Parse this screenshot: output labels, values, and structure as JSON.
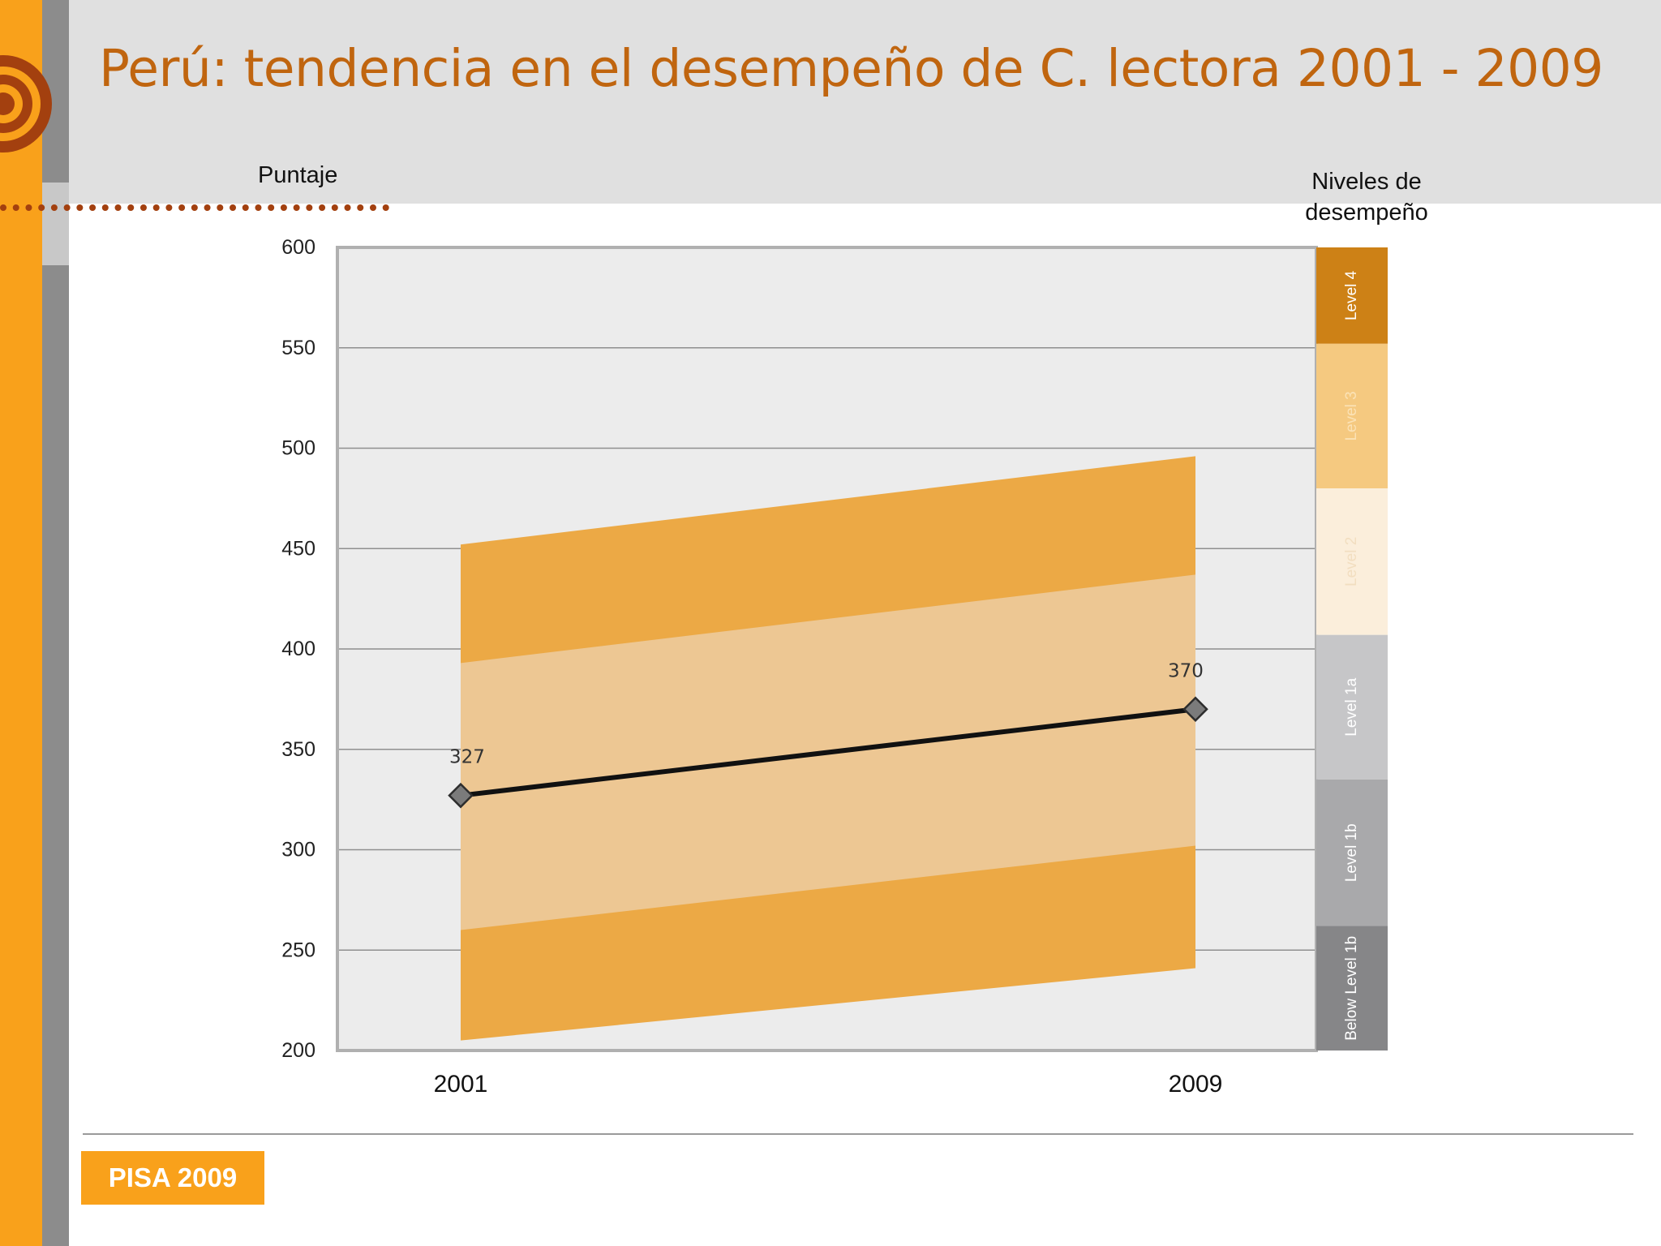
{
  "title": "Perú: tendencia en el desempeño de C. lectora 2001 - 2009",
  "footer_badge": "PISA 2009",
  "y_axis_label": "Puntaje",
  "levels_title": "Niveles de desempeño",
  "colors": {
    "accent_orange": "#f9a11b",
    "title_orange": "#c0650f",
    "band_outer": "#eca945",
    "band_inner": "#edc793",
    "line": "#111111",
    "marker": "#7b7b7b"
  },
  "chart_data": {
    "type": "line",
    "x": [
      "2001",
      "2009"
    ],
    "ylim": [
      200,
      600
    ],
    "yticks": [
      600,
      550,
      500,
      450,
      400,
      350,
      300,
      250,
      200
    ],
    "grid": true,
    "series": [
      {
        "values": [
          327,
          370
        ],
        "data_labels": [
          "327",
          "370"
        ]
      }
    ],
    "bands": [
      {
        "lower": [
          205,
          241
        ],
        "upper": [
          452,
          496
        ],
        "style": "outer"
      },
      {
        "lower": [
          260,
          302
        ],
        "upper": [
          393,
          437
        ],
        "style": "inner"
      }
    ],
    "levels": [
      {
        "label": "Level 4",
        "from": 552,
        "to": 600,
        "color": "#cd8116",
        "text": "#ffffff"
      },
      {
        "label": "Level 3",
        "from": 480,
        "to": 552,
        "color": "#f5c980",
        "text": "#fbe2b5"
      },
      {
        "label": "Level 2",
        "from": 407,
        "to": 480,
        "color": "#fbeedb",
        "text": "#f2dec0"
      },
      {
        "label": "Level 1a",
        "from": 335,
        "to": 407,
        "color": "#c6c6c8",
        "text": "#ffffff"
      },
      {
        "label": "Level 1b",
        "from": 262,
        "to": 335,
        "color": "#a9a9ab",
        "text": "#ffffff"
      },
      {
        "label": "Below Level 1b",
        "from": 200,
        "to": 262,
        "color": "#868688",
        "text": "#ffffff"
      }
    ]
  }
}
